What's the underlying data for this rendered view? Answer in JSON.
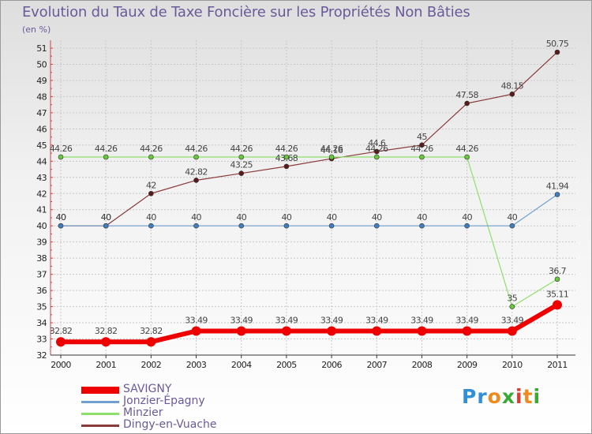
{
  "title": "Evolution du Taux de Taxe Foncière sur les Propriétés Non Bâties",
  "subtitle": "(en %)",
  "logo": {
    "letters": [
      "P",
      "r",
      "o",
      "x",
      "i",
      "t",
      "i"
    ],
    "colors": [
      "#2f8fd8",
      "#2f8fd8",
      "#f08a1c",
      "#3aaa35",
      "#e03a2d",
      "#f08a1c",
      "#3aaa35"
    ]
  },
  "chart_data": {
    "type": "line",
    "title": "Evolution du Taux de Taxe Foncière sur les Propriétés Non Bâties",
    "ylabel": "(en %)",
    "xlabel": "",
    "ylim": [
      32,
      51
    ],
    "yticks": [
      32,
      33,
      34,
      35,
      36,
      37,
      38,
      39,
      40,
      41,
      42,
      43,
      44,
      45,
      46,
      47,
      48,
      49,
      50,
      51
    ],
    "grid": true,
    "legend": "bottom-left",
    "categories": [
      "2000",
      "2001",
      "2002",
      "2003",
      "2004",
      "2005",
      "2006",
      "2007",
      "2008",
      "2009",
      "2010",
      "2011"
    ],
    "series": [
      {
        "name": "SAVIGNY",
        "color": "#ee0000",
        "dot": "#ee0000",
        "width": 6,
        "radius": 6,
        "values": [
          32.82,
          32.82,
          32.82,
          33.49,
          33.49,
          33.49,
          33.49,
          33.49,
          33.49,
          33.49,
          33.49,
          35.11
        ],
        "labels": [
          "32.82",
          "32.82",
          "32.82",
          "33.49",
          "33.49",
          "33.49",
          "33.49",
          "33.49",
          "33.49",
          "33.49",
          "33.49",
          "35.11"
        ]
      },
      {
        "name": "Jonzier-Épagny",
        "color": "#6fa0d0",
        "dot": "#3f7fbf",
        "width": 1.2,
        "radius": 3,
        "values": [
          40,
          40,
          40,
          40,
          40,
          40,
          40,
          40,
          40,
          40,
          40,
          41.94
        ],
        "labels": [
          "40",
          "40",
          "40",
          "40",
          "40",
          "40",
          "40",
          "40",
          "40",
          "40",
          "40",
          "41.94"
        ]
      },
      {
        "name": "Minzier",
        "color": "#8ee06a",
        "dot": "#66c83a",
        "width": 1.2,
        "radius": 3,
        "values": [
          44.26,
          44.26,
          44.26,
          44.26,
          44.26,
          44.26,
          44.26,
          44.26,
          44.26,
          44.26,
          35,
          36.7
        ],
        "labels": [
          "44.26",
          "44.26",
          "44.26",
          "44.26",
          "44.26",
          "44.26",
          "44.26",
          "44.26",
          "44.26",
          "44.26",
          "35",
          "36.7"
        ]
      },
      {
        "name": "Dingy-en-Vuache",
        "color": "#8a3a3a",
        "dot": "#5a1a1a",
        "width": 1.2,
        "radius": 3,
        "values": [
          40,
          40,
          42,
          42.82,
          43.25,
          43.68,
          44.16,
          44.6,
          45,
          47.58,
          48.15,
          50.75
        ],
        "labels": [
          "40",
          "40",
          "42",
          "42.82",
          "43.25",
          "43.68",
          "44.16",
          "44.6",
          "45",
          "47.58",
          "48.15",
          "50.75"
        ]
      }
    ]
  }
}
